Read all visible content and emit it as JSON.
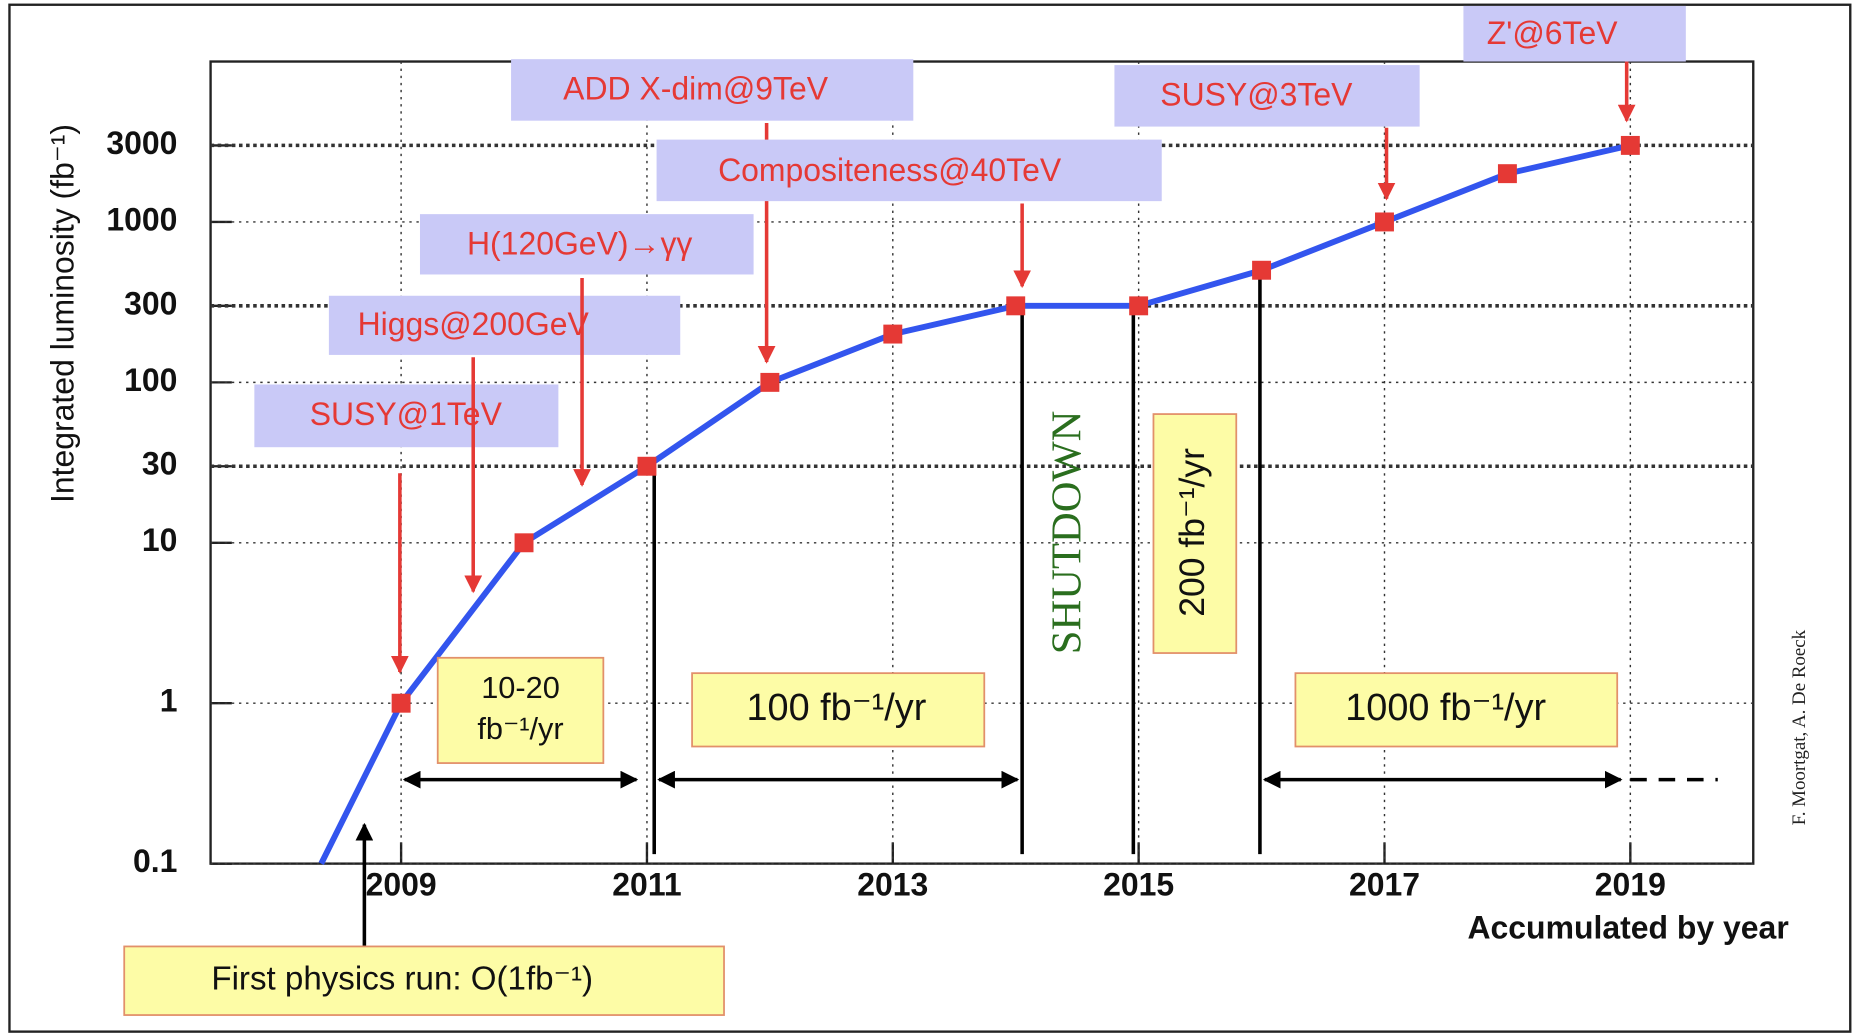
{
  "chart_data": {
    "type": "line",
    "y_label": "Integrated luminosity (fb⁻¹)",
    "x_label": "Accumulated by year",
    "x": [
      2008.35,
      2009,
      2010,
      2011,
      2012,
      2013,
      2014,
      2015,
      2016,
      2017,
      2018,
      2019
    ],
    "series": [
      {
        "color": "#3355ee",
        "marker_color": "#e53935",
        "values": [
          0.1,
          1,
          10,
          30,
          100,
          200,
          300,
          300,
          500,
          1000,
          2000,
          3000
        ]
      }
    ],
    "log_y": true,
    "ylim": [
      0.1,
      10000
    ],
    "yticks": [
      0.1,
      1,
      10,
      30,
      100,
      300,
      1000,
      3000
    ],
    "xlim": [
      2007.45,
      2020
    ],
    "xticks": [
      2009,
      2011,
      2013,
      2015,
      2017,
      2019
    ],
    "grid": true,
    "annotations": [
      {
        "text": "SUSY@1TeV"
      },
      {
        "text": "Higgs@200GeV"
      },
      {
        "text": "H(120GeV)→γγ"
      },
      {
        "text": "ADD X-dim@9TeV"
      },
      {
        "text": "Compositeness@40TeV"
      },
      {
        "text": "SUSY@3TeV"
      },
      {
        "text": "Z'@6TeV"
      }
    ],
    "rate_boxes": [
      {
        "lines": [
          "10-20",
          "fb⁻¹/yr"
        ]
      },
      {
        "lines": [
          "100 fb⁻¹/yr"
        ]
      },
      {
        "lines": [
          "200 fb⁻¹/yr"
        ]
      },
      {
        "lines": [
          "1000 fb⁻¹/yr"
        ]
      },
      {
        "lines": [
          "First physics run: O(1fb⁻¹)"
        ]
      }
    ],
    "shutdown": "SHUTDOWN",
    "credit": "F. Moortgat, A. De Roeck"
  }
}
